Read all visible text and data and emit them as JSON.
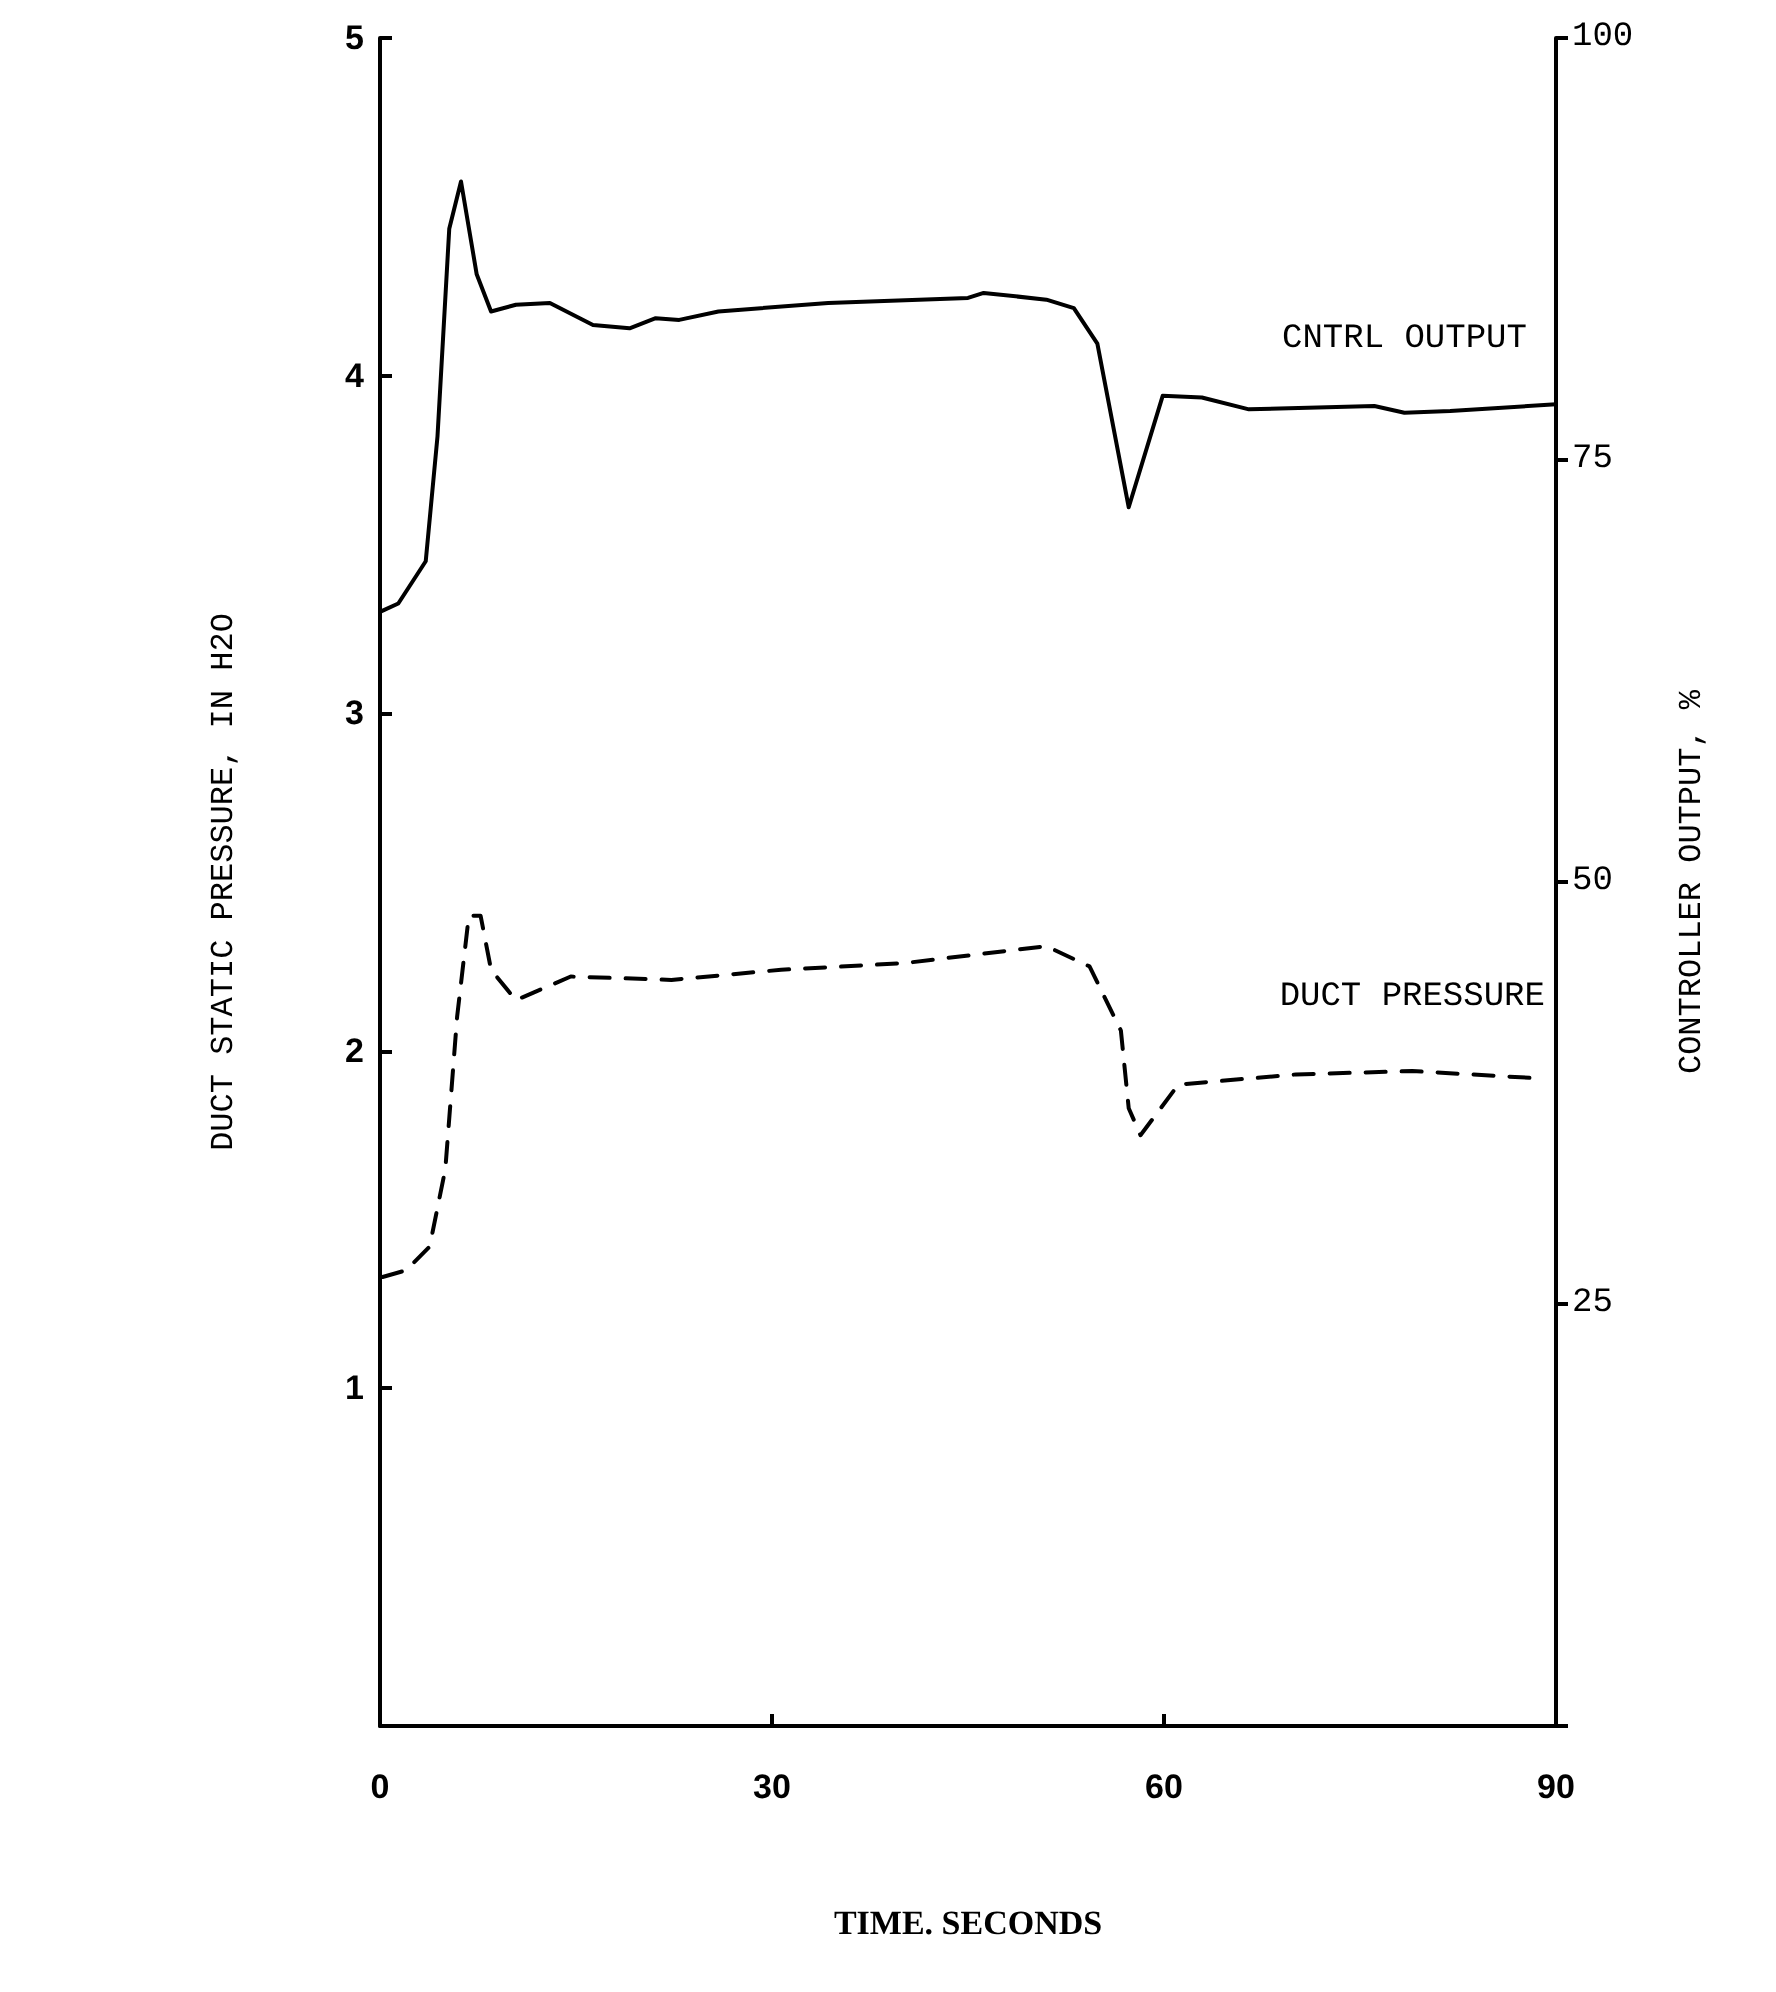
{
  "chart_data": {
    "type": "line",
    "xlabel": "TIME. SECONDS",
    "ylabel": "CONTROLLER OUTPUT, %",
    "y2label": "DUCT STATIC PRESSURE, IN H2O",
    "xlim": [
      0,
      90
    ],
    "xticks": [
      0,
      30,
      60,
      90
    ],
    "ylim": [
      0,
      100
    ],
    "yticks": [
      {
        "value": 0,
        "label": null
      },
      25,
      50,
      75,
      100
    ],
    "y2lim": [
      0,
      5
    ],
    "y2ticks": [
      1,
      2,
      3,
      4,
      5
    ],
    "grid": false,
    "legend": false,
    "marker": "none",
    "series": [
      {
        "name": "CNTRL OUTPUT",
        "color": "#000000",
        "line_style": "solid",
        "x": [
          0,
          1.4,
          3.5,
          4.4,
          5.3,
          6.2,
          7.4,
          8.5,
          10.4,
          13,
          16.3,
          19.1,
          21.1,
          22.9,
          25.9,
          34.3,
          45,
          46.2,
          51,
          53.1,
          54.9,
          57.3,
          59.9,
          62.9,
          66.5,
          76.1,
          78.4,
          81.9,
          90
        ],
        "values": [
          66,
          66.5,
          69,
          76.4,
          88.7,
          91.5,
          86,
          83.8,
          84.2,
          84.3,
          83,
          82.8,
          83.4,
          83.3,
          83.8,
          84.3,
          84.6,
          84.9,
          84.5,
          84,
          81.9,
          72.2,
          78.8,
          78.7,
          78,
          78.2,
          77.8,
          77.9,
          78.3
        ]
      },
      {
        "name": "DUCT PRESSURE",
        "color": "#000000",
        "axis": "y2",
        "line_style": "dashed",
        "x": [
          0.2,
          2,
          3.8,
          5,
          5.9,
          6.8,
          7.7,
          8.5,
          10.4,
          14.6,
          22.3,
          30.7,
          40.2,
          51,
          54.3,
          56.7,
          57.3,
          58.2,
          61.1,
          70.1,
          79,
          88
        ],
        "values": [
          1.33,
          1.35,
          1.42,
          1.65,
          2.1,
          2.4,
          2.4,
          2.24,
          2.15,
          2.22,
          2.21,
          2.24,
          2.26,
          2.31,
          2.25,
          2.06,
          1.83,
          1.75,
          1.9,
          1.93,
          1.94,
          1.92
        ]
      }
    ]
  }
}
